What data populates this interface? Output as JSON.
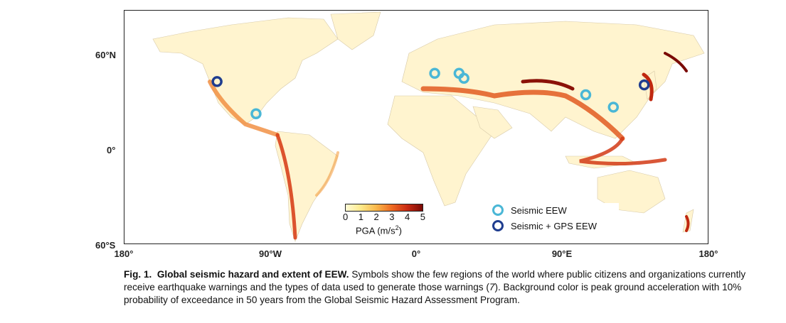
{
  "map": {
    "lat_labels": [
      "60°N",
      "0°",
      "60°S"
    ],
    "lon_labels": [
      "180°",
      "90°W",
      "0°",
      "90°E",
      "180°"
    ],
    "colorbar": {
      "ticks": [
        "0",
        "1",
        "2",
        "3",
        "4",
        "5"
      ],
      "unit": "PGA (m/s",
      "unit_sup": "2",
      "unit_close": ")"
    },
    "legend": [
      {
        "label": "Seismic EEW",
        "color": "#4ab7d6"
      },
      {
        "label": "Seismic + GPS EEW",
        "color": "#1f3d8f"
      }
    ],
    "sites": [
      {
        "name": "US West Coast",
        "lon": -123,
        "lat": 39,
        "type": "gps"
      },
      {
        "name": "Mexico",
        "lon": -99,
        "lat": 19.5,
        "type": "seismic"
      },
      {
        "name": "Italy",
        "lon": 11,
        "lat": 44,
        "type": "seismic"
      },
      {
        "name": "Romania",
        "lon": 26,
        "lat": 44,
        "type": "seismic"
      },
      {
        "name": "Turkey",
        "lon": 29,
        "lat": 41,
        "type": "seismic"
      },
      {
        "name": "China",
        "lon": 104,
        "lat": 31,
        "type": "seismic"
      },
      {
        "name": "Taiwan",
        "lon": 121,
        "lat": 23.5,
        "type": "seismic"
      },
      {
        "name": "Japan",
        "lon": 140,
        "lat": 37,
        "type": "gps"
      }
    ]
  },
  "caption": {
    "fig_label": "Fig. 1.",
    "fig_title": "Global seismic hazard and extent of EEW.",
    "text_1": "Symbols show the few regions of the world where public citizens and organizations currently receive earthquake warnings and the types of data used to generate those warnings (",
    "ref": "7",
    "text_2": "). Background color is peak ground acceleration with 10% probability of exceedance in 50 years from the Global Seismic Hazard Assessment Program."
  }
}
